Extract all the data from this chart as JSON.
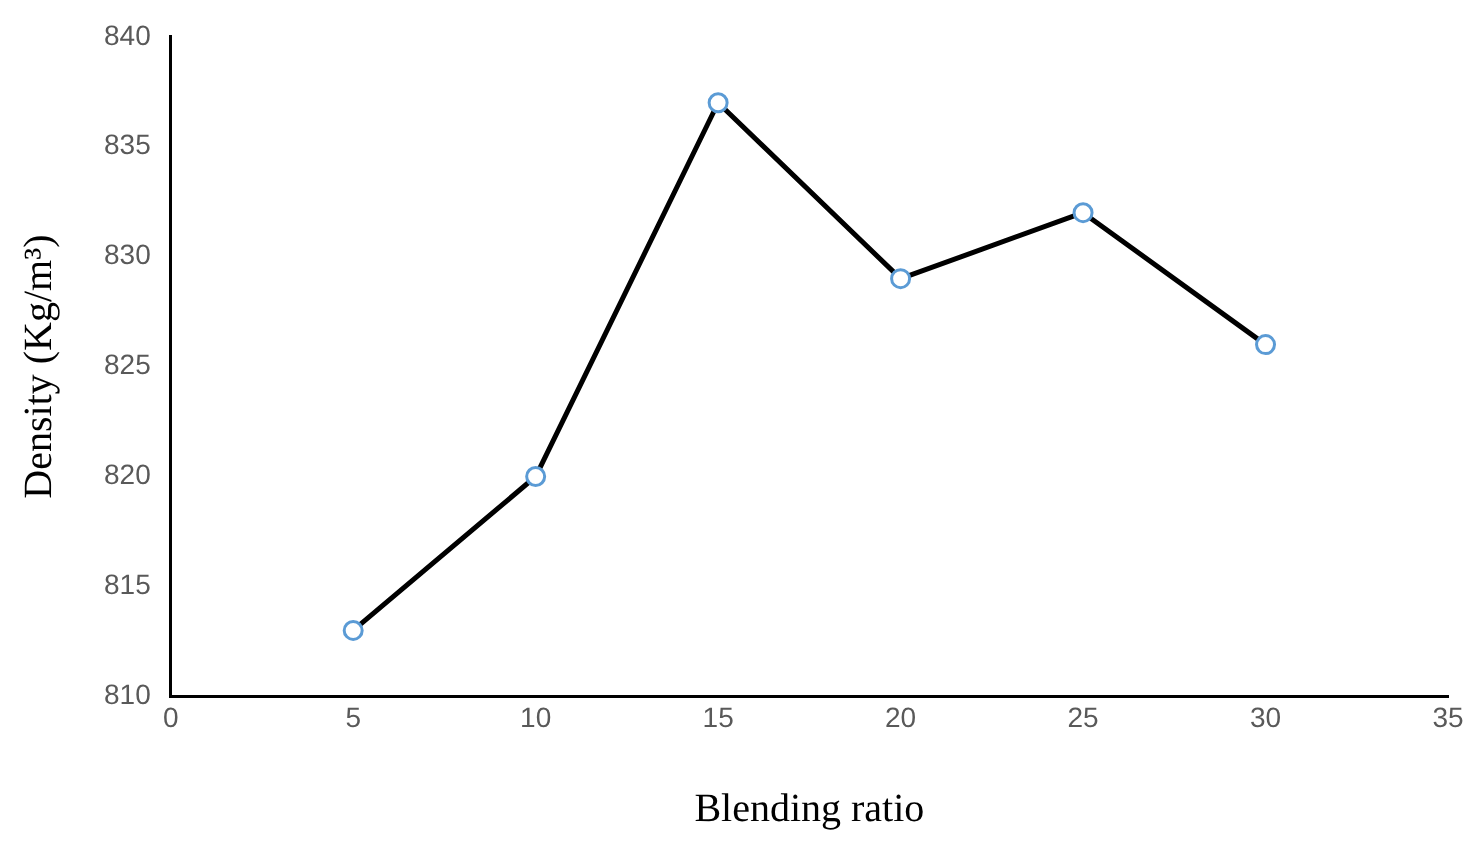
{
  "chart_data": {
    "type": "line",
    "xlabel": "Blending ratio",
    "ylabel": "Density (Kg/m³)",
    "x": [
      5,
      10,
      15,
      20,
      25,
      30
    ],
    "series": [
      {
        "color": "#000000",
        "values": [
          813,
          820,
          837,
          829,
          832,
          826
        ]
      }
    ],
    "xlim": [
      0,
      35
    ],
    "xticks": [
      0,
      5,
      10,
      15,
      20,
      25,
      30,
      35
    ],
    "ylim": [
      810,
      840
    ],
    "yticks": [
      810,
      815,
      820,
      825,
      830,
      835,
      840
    ],
    "grid": false,
    "legend": false,
    "marker": "circle",
    "line_style": "solid"
  }
}
